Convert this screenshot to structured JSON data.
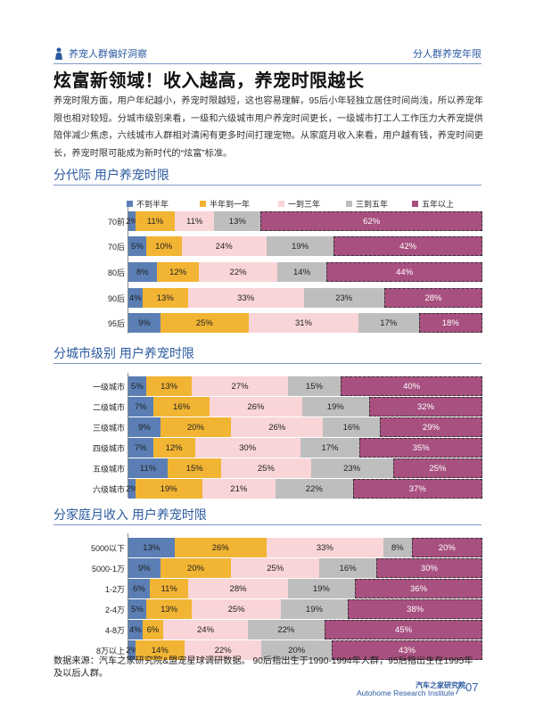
{
  "header": {
    "left": "养宠人群偏好洞察",
    "right": "分人群养宠年限"
  },
  "title": "炫富新领域！收入越高，养宠时限越长",
  "paragraph": "养宠时限方面，用户年纪越小，养宠时限越短，这也容易理解，95后小年轻独立居住时间尚浅，所以养宠年限也相对较短。分城市级别来看，一级和六级城市用户养宠时间更长，一级城市打工人工作压力大养宠提供陪伴减少焦虑，六线城市人群相对清闲有更多时间打理宠物。从家庭月收入来看，用户越有钱，养宠时间更长，养宠时限可能成为新时代的“炫富”标准。",
  "legend": [
    "不到半年",
    "半年到一年",
    "一到三年",
    "三到五年",
    "五年以上"
  ],
  "colors": [
    "#5b7fb5",
    "#f2b433",
    "#f9d5d8",
    "#bebebe",
    "#a8507f"
  ],
  "chart_data": [
    {
      "type": "bar",
      "title": "分代际 用户养宠时限",
      "categories": [
        "70前",
        "70后",
        "80后",
        "90后",
        "95后"
      ],
      "series": [
        {
          "name": "不到半年",
          "values": [
            2,
            5,
            8,
            4,
            9
          ]
        },
        {
          "name": "半年到一年",
          "values": [
            11,
            10,
            12,
            13,
            25
          ]
        },
        {
          "name": "一到三年",
          "values": [
            11,
            24,
            22,
            33,
            31
          ]
        },
        {
          "name": "三到五年",
          "values": [
            13,
            19,
            14,
            23,
            17
          ]
        },
        {
          "name": "五年以上",
          "values": [
            62,
            42,
            44,
            28,
            18
          ]
        }
      ]
    },
    {
      "type": "bar",
      "title": "分城市级别 用户养宠时限",
      "categories": [
        "一级城市",
        "二级城市",
        "三级城市",
        "四级城市",
        "五级城市",
        "六级城市"
      ],
      "series": [
        {
          "name": "不到半年",
          "values": [
            5,
            7,
            9,
            7,
            11,
            2
          ]
        },
        {
          "name": "半年到一年",
          "values": [
            13,
            16,
            20,
            12,
            15,
            19
          ]
        },
        {
          "name": "一到三年",
          "values": [
            27,
            26,
            26,
            30,
            25,
            21
          ]
        },
        {
          "name": "三到五年",
          "values": [
            15,
            19,
            16,
            17,
            23,
            22
          ]
        },
        {
          "name": "五年以上",
          "values": [
            40,
            32,
            29,
            35,
            25,
            37
          ]
        }
      ]
    },
    {
      "type": "bar",
      "title": "分家庭月收入 用户养宠时限",
      "categories": [
        "5000以下",
        "5000-1万",
        "1-2万",
        "2-4万",
        "4-8万",
        "8万以上"
      ],
      "series": [
        {
          "name": "不到半年",
          "values": [
            13,
            9,
            6,
            5,
            4,
            2
          ]
        },
        {
          "name": "半年到一年",
          "values": [
            26,
            20,
            11,
            13,
            6,
            14
          ]
        },
        {
          "name": "一到三年",
          "values": [
            33,
            25,
            28,
            25,
            24,
            22
          ]
        },
        {
          "name": "三到五年",
          "values": [
            8,
            16,
            19,
            19,
            22,
            20
          ]
        },
        {
          "name": "五年以上",
          "values": [
            20,
            30,
            36,
            38,
            45,
            43
          ]
        }
      ]
    }
  ],
  "footnote": "数据来源：汽车之家研究院&盟宠星球调研数据。 90后指出生于1990-1994年人群，95后指出生在1995年及以后人群。",
  "brand_cn": "汽车之家研究院",
  "brand_en": "Autohome Research Institute",
  "page_number": "07"
}
